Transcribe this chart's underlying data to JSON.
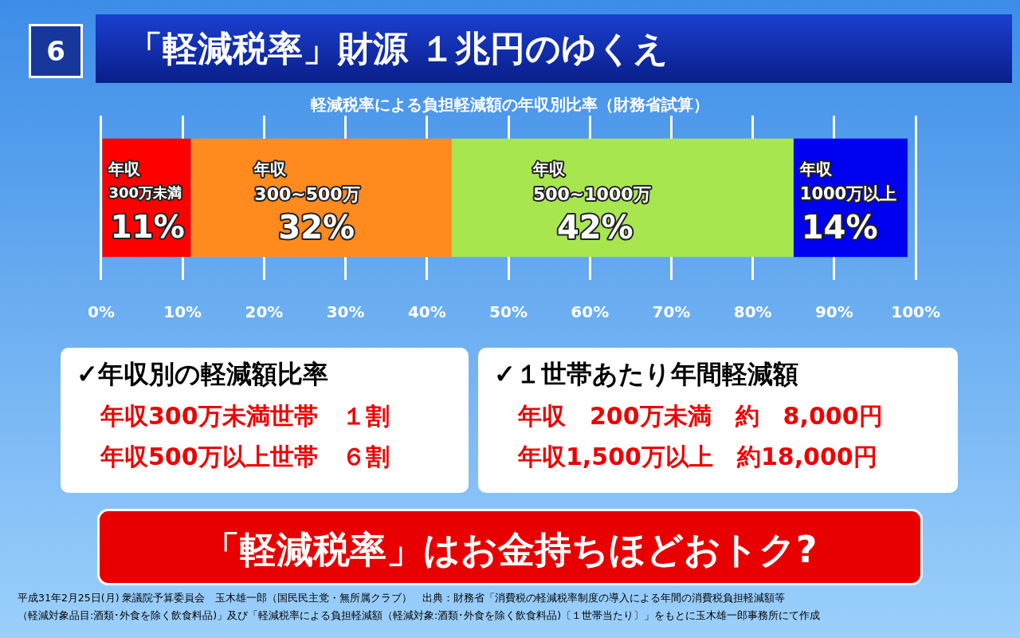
{
  "chart_data": {
    "type": "bar",
    "orientation": "horizontal",
    "stacked": true,
    "title": "「軽減税率」財源 １兆円のゆくえ",
    "subtitle": "軽減税率による負担軽減額の年収別比率（財務省試算）",
    "categories": [
      null
    ],
    "series": [
      {
        "name": "年収\n300万未満",
        "color": "#ff0000",
        "values": [
          11
        ],
        "value_labels": [
          "11%"
        ]
      },
      {
        "name": "年収\n300~500万",
        "color": "#ff8a1e",
        "values": [
          32
        ],
        "value_labels": [
          "32%"
        ]
      },
      {
        "name": "年収\n500~1000万",
        "color": "#a8e650",
        "values": [
          42
        ],
        "value_labels": [
          "42%"
        ]
      },
      {
        "name": "年収\n1000万以上",
        "color": "#0000f0",
        "values": [
          14
        ],
        "value_labels": [
          "14%"
        ]
      }
    ],
    "xlim": [
      0,
      100
    ],
    "xticks": [
      {
        "value": 0,
        "label": "0%"
      },
      {
        "value": 10,
        "label": "10%"
      },
      {
        "value": 20,
        "label": "20%"
      },
      {
        "value": 30,
        "label": "30%"
      },
      {
        "value": 40,
        "label": "40%"
      },
      {
        "value": 50,
        "label": "50%"
      },
      {
        "value": 60,
        "label": "60%"
      },
      {
        "value": 70,
        "label": "70%"
      },
      {
        "value": 80,
        "label": "80%"
      },
      {
        "value": 90,
        "label": "90%"
      },
      {
        "value": 100,
        "label": "100%"
      }
    ],
    "grid": "x",
    "legend": false,
    "annotations": [
      "6",
      "✓年収別の軽減額比率",
      "年収300万未満世帯　１割",
      "年収500万以上世帯　６割",
      "✓１世帯あたり年間軽減額",
      "年収　200万未満　約　8,000円",
      "年収1,500万以上　約18,000円",
      "「軽減税率」はお金持ちほどおトク?",
      "平成31年2月25日(月) 衆議院予算委員会　玉木雄一郎（国民民主党・無所属クラブ）　出典：財務省「消費税の軽減税率制度の導入による年間の消費税負担軽減額等",
      "（軽減対象品目:酒類･外食を除く飲食料品)」及び「軽減税率による負担軽減額（軽減対象:酒類･外食を除く飲食料品)〔１世帯当たり〕」をもとに玉木雄一郎事務所にて作成"
    ]
  }
}
